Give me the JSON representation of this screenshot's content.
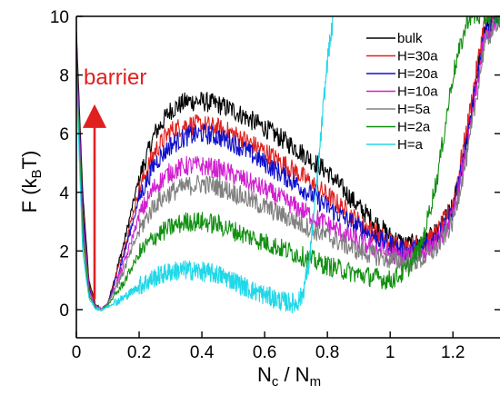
{
  "chart_data": {
    "type": "line",
    "xlabel": "N_c / N_m",
    "ylabel": "F (k_B T)",
    "xlim": [
      0,
      1.35
    ],
    "ylim": [
      -0.6,
      10
    ],
    "xticks": [
      "0",
      "0.2",
      "0.4",
      "0.6",
      "0.8",
      "1",
      "1.2"
    ],
    "yticks": [
      "0",
      "2",
      "4",
      "6",
      "8",
      "10"
    ],
    "grid": false,
    "legend_position": "top-right",
    "annotation": {
      "text": "barrier",
      "color": "#e02020",
      "arrow_x": 0.058,
      "arrow_y_from": 0.35,
      "arrow_y_to": 6.6
    },
    "series": [
      {
        "name": "bulk",
        "color": "#000000",
        "x": [
          0.0,
          0.02,
          0.04,
          0.06,
          0.08,
          0.1,
          0.15,
          0.2,
          0.25,
          0.3,
          0.35,
          0.4,
          0.45,
          0.5,
          0.6,
          0.7,
          0.8,
          0.9,
          1.0,
          1.05,
          1.1,
          1.15,
          1.2,
          1.25,
          1.3,
          1.35
        ],
        "y": [
          9.5,
          4.0,
          1.0,
          0.2,
          0.0,
          0.2,
          2.2,
          4.5,
          6.0,
          6.8,
          7.1,
          7.1,
          7.0,
          6.8,
          6.2,
          5.5,
          4.7,
          3.5,
          2.5,
          2.2,
          2.3,
          2.6,
          3.5,
          6.0,
          9.5,
          10.0
        ]
      },
      {
        "name": "H=30a",
        "color": "#e0201e",
        "x": [
          0.0,
          0.02,
          0.04,
          0.06,
          0.08,
          0.1,
          0.15,
          0.2,
          0.25,
          0.3,
          0.35,
          0.4,
          0.45,
          0.5,
          0.6,
          0.7,
          0.8,
          0.9,
          1.0,
          1.05,
          1.1,
          1.15,
          1.2,
          1.25,
          1.3,
          1.35
        ],
        "y": [
          9.2,
          3.5,
          0.9,
          0.15,
          0.0,
          0.2,
          2.0,
          4.1,
          5.4,
          6.1,
          6.3,
          6.3,
          6.2,
          6.0,
          5.4,
          4.7,
          3.9,
          3.0,
          2.3,
          2.1,
          2.2,
          2.6,
          3.6,
          6.5,
          9.8,
          10.0
        ]
      },
      {
        "name": "H=20a",
        "color": "#1010cc",
        "x": [
          0.0,
          0.02,
          0.04,
          0.06,
          0.08,
          0.1,
          0.15,
          0.2,
          0.25,
          0.3,
          0.35,
          0.4,
          0.45,
          0.5,
          0.6,
          0.7,
          0.8,
          0.9,
          1.0,
          1.05,
          1.1,
          1.15,
          1.2,
          1.25,
          1.3,
          1.35
        ],
        "y": [
          9.0,
          3.3,
          0.8,
          0.1,
          0.0,
          0.2,
          1.8,
          3.8,
          5.0,
          5.6,
          5.9,
          6.0,
          5.9,
          5.7,
          5.0,
          4.3,
          3.5,
          2.8,
          2.2,
          2.0,
          2.1,
          2.5,
          3.4,
          6.0,
          9.5,
          10.0
        ]
      },
      {
        "name": "H=10a",
        "color": "#d020d0",
        "x": [
          0.0,
          0.02,
          0.04,
          0.06,
          0.08,
          0.1,
          0.15,
          0.2,
          0.25,
          0.3,
          0.35,
          0.4,
          0.45,
          0.5,
          0.6,
          0.7,
          0.8,
          0.9,
          1.0,
          1.05,
          1.1,
          1.15,
          1.2,
          1.25,
          1.3,
          1.35
        ],
        "y": [
          8.7,
          3.0,
          0.7,
          0.1,
          0.0,
          0.2,
          1.5,
          3.2,
          4.2,
          4.7,
          4.9,
          4.9,
          4.8,
          4.6,
          4.1,
          3.5,
          2.9,
          2.3,
          1.9,
          1.8,
          1.9,
          2.3,
          3.2,
          5.8,
          9.2,
          10.0
        ]
      },
      {
        "name": "H=5a",
        "color": "#808080",
        "x": [
          0.0,
          0.02,
          0.04,
          0.06,
          0.08,
          0.1,
          0.15,
          0.2,
          0.25,
          0.3,
          0.35,
          0.4,
          0.45,
          0.5,
          0.6,
          0.7,
          0.8,
          0.9,
          1.0,
          1.05,
          1.1,
          1.15,
          1.2,
          1.25,
          1.3,
          1.35
        ],
        "y": [
          8.5,
          2.8,
          0.6,
          0.1,
          0.0,
          0.2,
          1.3,
          2.7,
          3.6,
          4.0,
          4.2,
          4.3,
          4.2,
          4.0,
          3.5,
          3.0,
          2.5,
          2.0,
          1.7,
          1.6,
          1.7,
          2.1,
          3.0,
          5.5,
          9.0,
          10.0
        ]
      },
      {
        "name": "H=2a",
        "color": "#109010",
        "x": [
          0.0,
          0.02,
          0.04,
          0.06,
          0.08,
          0.1,
          0.15,
          0.2,
          0.25,
          0.3,
          0.35,
          0.4,
          0.45,
          0.5,
          0.6,
          0.7,
          0.8,
          0.9,
          1.0,
          1.05,
          1.1,
          1.15,
          1.2,
          1.25,
          1.3,
          1.35
        ],
        "y": [
          8.3,
          2.5,
          0.5,
          0.05,
          0.0,
          0.15,
          0.9,
          1.9,
          2.5,
          2.8,
          3.0,
          3.0,
          2.9,
          2.7,
          2.3,
          1.9,
          1.5,
          1.2,
          1.0,
          1.3,
          2.2,
          4.5,
          8.0,
          10.0,
          10.0,
          10.0
        ]
      },
      {
        "name": "H=a",
        "color": "#20d8e8",
        "x": [
          0.0,
          0.02,
          0.04,
          0.06,
          0.08,
          0.1,
          0.15,
          0.2,
          0.25,
          0.3,
          0.35,
          0.4,
          0.45,
          0.5,
          0.55,
          0.6,
          0.65,
          0.7,
          0.72,
          0.74,
          0.76,
          0.78,
          0.8,
          0.82
        ],
        "y": [
          8.0,
          2.0,
          0.4,
          0.05,
          0.0,
          0.1,
          0.4,
          0.8,
          1.1,
          1.3,
          1.35,
          1.3,
          1.2,
          1.0,
          0.7,
          0.5,
          0.3,
          0.2,
          0.5,
          1.5,
          3.5,
          6.0,
          8.5,
          10.0
        ]
      }
    ]
  }
}
